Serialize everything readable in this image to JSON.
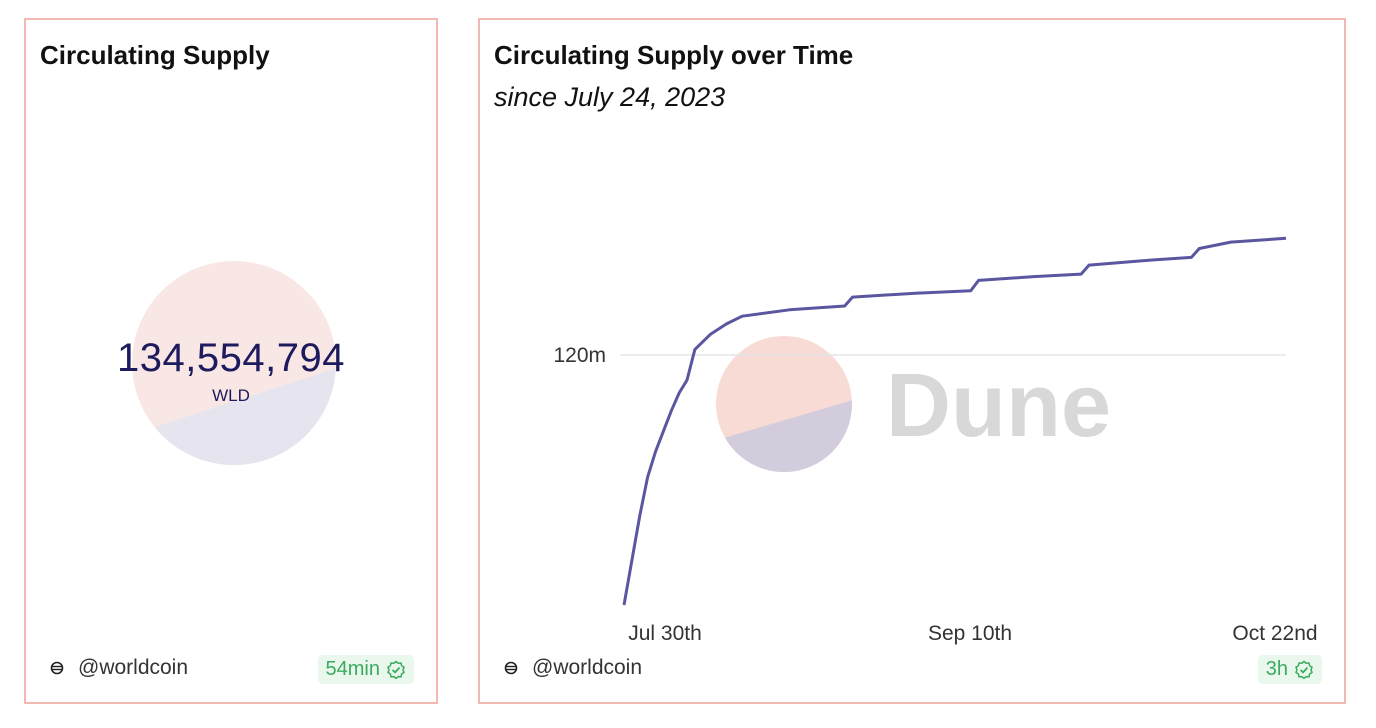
{
  "cards": {
    "counter": {
      "title": "Circulating Supply",
      "value": "134,554,794",
      "unit": "WLD",
      "author": "@worldcoin",
      "freshness": "54min"
    },
    "chart": {
      "title": "Circulating Supply over Time",
      "subtitle": "since July 24, 2023",
      "author": "@worldcoin",
      "freshness": "3h",
      "watermark": "Dune"
    }
  },
  "colors": {
    "card_border": "#f4b8b2",
    "line": "#5a56a0",
    "value_text": "#1e1a5e",
    "badge_bg": "#e9f7ec",
    "badge_text": "#3aab5f",
    "logo_top": "#f7dcd6",
    "logo_bottom": "#dcdcec"
  },
  "icons": {
    "author": "globe-icon",
    "freshness": "check-badge-icon"
  },
  "chart_data": {
    "type": "line",
    "title": "Circulating Supply over Time",
    "subtitle": "since July 24, 2023",
    "xlabel": "",
    "ylabel": "",
    "x_ticks": [
      "Jul 30th",
      "Sep 10th",
      "Oct 22nd"
    ],
    "y_ticks": [
      "120m"
    ],
    "grid": "horizontal",
    "x_range": [
      "2023-07-30",
      "2023-10-22"
    ],
    "y_range_m": [
      111.0,
      129.0
    ],
    "series": [
      {
        "values": [
          {
            "x": "2023-07-30",
            "y": 111.0
          },
          {
            "x": "2023-08-01",
            "y": 114.5
          },
          {
            "x": "2023-08-02",
            "y": 116.0
          },
          {
            "x": "2023-08-03",
            "y": 117.0
          },
          {
            "x": "2023-08-04",
            "y": 117.8
          },
          {
            "x": "2023-08-05",
            "y": 118.6
          },
          {
            "x": "2023-08-06",
            "y": 119.3
          },
          {
            "x": "2023-08-07",
            "y": 119.8
          },
          {
            "x": "2023-08-08",
            "y": 121.0
          },
          {
            "x": "2023-08-10",
            "y": 121.6
          },
          {
            "x": "2023-08-12",
            "y": 122.0
          },
          {
            "x": "2023-08-14",
            "y": 122.3
          },
          {
            "x": "2023-08-20",
            "y": 122.55
          },
          {
            "x": "2023-08-27",
            "y": 122.7
          },
          {
            "x": "2023-08-28",
            "y": 123.05
          },
          {
            "x": "2023-09-05",
            "y": 123.2
          },
          {
            "x": "2023-09-12",
            "y": 123.3
          },
          {
            "x": "2023-09-13",
            "y": 123.7
          },
          {
            "x": "2023-09-20",
            "y": 123.85
          },
          {
            "x": "2023-09-26",
            "y": 123.95
          },
          {
            "x": "2023-09-27",
            "y": 124.3
          },
          {
            "x": "2023-10-05",
            "y": 124.5
          },
          {
            "x": "2023-10-10",
            "y": 124.6
          },
          {
            "x": "2023-10-11",
            "y": 124.95
          },
          {
            "x": "2023-10-15",
            "y": 125.2
          },
          {
            "x": "2023-10-22",
            "y": 125.35
          }
        ]
      }
    ]
  }
}
